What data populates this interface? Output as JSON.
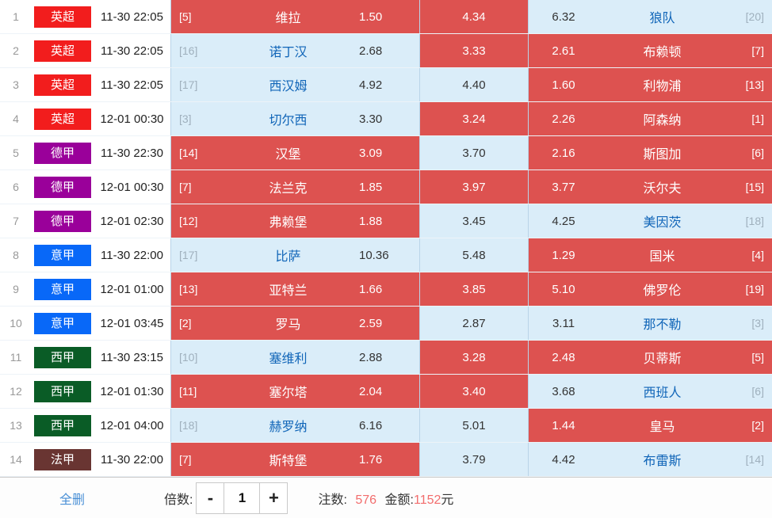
{
  "colors": {
    "selected_cell": "#dd5250",
    "unselected_cell": "#daedf9",
    "team_link_blue": "#1065b8",
    "footer_link_blue": "#4a90d6",
    "highlight_number": "#f26d6d"
  },
  "rows": [
    {
      "num": "1",
      "league": "英超",
      "league_color": "#f21d1d",
      "time": "11-30 22:05",
      "home": {
        "rank": "[5]",
        "team": "维拉",
        "odds": "1.50",
        "selected": true
      },
      "draw": {
        "odds": "4.34",
        "selected": true
      },
      "away": {
        "odds": "6.32",
        "team": "狼队",
        "rank": "[20]",
        "selected": false
      }
    },
    {
      "num": "2",
      "league": "英超",
      "league_color": "#f21d1d",
      "time": "11-30 22:05",
      "home": {
        "rank": "[16]",
        "team": "诺丁汉",
        "odds": "2.68",
        "selected": false
      },
      "draw": {
        "odds": "3.33",
        "selected": true
      },
      "away": {
        "odds": "2.61",
        "team": "布赖顿",
        "rank": "[7]",
        "selected": true
      }
    },
    {
      "num": "3",
      "league": "英超",
      "league_color": "#f21d1d",
      "time": "11-30 22:05",
      "home": {
        "rank": "[17]",
        "team": "西汉姆",
        "odds": "4.92",
        "selected": false
      },
      "draw": {
        "odds": "4.40",
        "selected": false
      },
      "away": {
        "odds": "1.60",
        "team": "利物浦",
        "rank": "[13]",
        "selected": true
      }
    },
    {
      "num": "4",
      "league": "英超",
      "league_color": "#f21d1d",
      "time": "12-01 00:30",
      "home": {
        "rank": "[3]",
        "team": "切尔西",
        "odds": "3.30",
        "selected": false
      },
      "draw": {
        "odds": "3.24",
        "selected": true
      },
      "away": {
        "odds": "2.26",
        "team": "阿森纳",
        "rank": "[1]",
        "selected": true
      }
    },
    {
      "num": "5",
      "league": "德甲",
      "league_color": "#9a009a",
      "time": "11-30 22:30",
      "home": {
        "rank": "[14]",
        "team": "汉堡",
        "odds": "3.09",
        "selected": true
      },
      "draw": {
        "odds": "3.70",
        "selected": false
      },
      "away": {
        "odds": "2.16",
        "team": "斯图加",
        "rank": "[6]",
        "selected": true
      }
    },
    {
      "num": "6",
      "league": "德甲",
      "league_color": "#9a009a",
      "time": "12-01 00:30",
      "home": {
        "rank": "[7]",
        "team": "法兰克",
        "odds": "1.85",
        "selected": true
      },
      "draw": {
        "odds": "3.97",
        "selected": true
      },
      "away": {
        "odds": "3.77",
        "team": "沃尔夫",
        "rank": "[15]",
        "selected": true
      }
    },
    {
      "num": "7",
      "league": "德甲",
      "league_color": "#9a009a",
      "time": "12-01 02:30",
      "home": {
        "rank": "[12]",
        "team": "弗赖堡",
        "odds": "1.88",
        "selected": true
      },
      "draw": {
        "odds": "3.45",
        "selected": false
      },
      "away": {
        "odds": "4.25",
        "team": "美因茨",
        "rank": "[18]",
        "selected": false
      }
    },
    {
      "num": "8",
      "league": "意甲",
      "league_color": "#0868f8",
      "time": "11-30 22:00",
      "home": {
        "rank": "[17]",
        "team": "比萨",
        "odds": "10.36",
        "selected": false
      },
      "draw": {
        "odds": "5.48",
        "selected": false
      },
      "away": {
        "odds": "1.29",
        "team": "国米",
        "rank": "[4]",
        "selected": true
      }
    },
    {
      "num": "9",
      "league": "意甲",
      "league_color": "#0868f8",
      "time": "12-01 01:00",
      "home": {
        "rank": "[13]",
        "team": "亚特兰",
        "odds": "1.66",
        "selected": true
      },
      "draw": {
        "odds": "3.85",
        "selected": true
      },
      "away": {
        "odds": "5.10",
        "team": "佛罗伦",
        "rank": "[19]",
        "selected": true
      }
    },
    {
      "num": "10",
      "league": "意甲",
      "league_color": "#0868f8",
      "time": "12-01 03:45",
      "home": {
        "rank": "[2]",
        "team": "罗马",
        "odds": "2.59",
        "selected": true
      },
      "draw": {
        "odds": "2.87",
        "selected": false
      },
      "away": {
        "odds": "3.11",
        "team": "那不勒",
        "rank": "[3]",
        "selected": false
      }
    },
    {
      "num": "11",
      "league": "西甲",
      "league_color": "#0a5c26",
      "time": "11-30 23:15",
      "home": {
        "rank": "[10]",
        "team": "塞维利",
        "odds": "2.88",
        "selected": false
      },
      "draw": {
        "odds": "3.28",
        "selected": true
      },
      "away": {
        "odds": "2.48",
        "team": "贝蒂斯",
        "rank": "[5]",
        "selected": true
      }
    },
    {
      "num": "12",
      "league": "西甲",
      "league_color": "#0a5c26",
      "time": "12-01 01:30",
      "home": {
        "rank": "[11]",
        "team": "塞尔塔",
        "odds": "2.04",
        "selected": true
      },
      "draw": {
        "odds": "3.40",
        "selected": true
      },
      "away": {
        "odds": "3.68",
        "team": "西班人",
        "rank": "[6]",
        "selected": false
      }
    },
    {
      "num": "13",
      "league": "西甲",
      "league_color": "#0a5c26",
      "time": "12-01 04:00",
      "home": {
        "rank": "[18]",
        "team": "赫罗纳",
        "odds": "6.16",
        "selected": false
      },
      "draw": {
        "odds": "5.01",
        "selected": false
      },
      "away": {
        "odds": "1.44",
        "team": "皇马",
        "rank": "[2]",
        "selected": true
      }
    },
    {
      "num": "14",
      "league": "法甲",
      "league_color": "#693532",
      "time": "11-30 22:00",
      "home": {
        "rank": "[7]",
        "team": "斯特堡",
        "odds": "1.76",
        "selected": true
      },
      "draw": {
        "odds": "3.79",
        "selected": false
      },
      "away": {
        "odds": "4.42",
        "team": "布雷斯",
        "rank": "[14]",
        "selected": false
      }
    }
  ],
  "footer": {
    "delete_all": "全删",
    "multiplier_label": "倍数:",
    "minus": "-",
    "multiplier_value": "1",
    "plus": "+",
    "bets_label": "注数:",
    "bets_count": "576",
    "amount_label": "金额:",
    "amount_value": "1152",
    "amount_unit": "元"
  }
}
